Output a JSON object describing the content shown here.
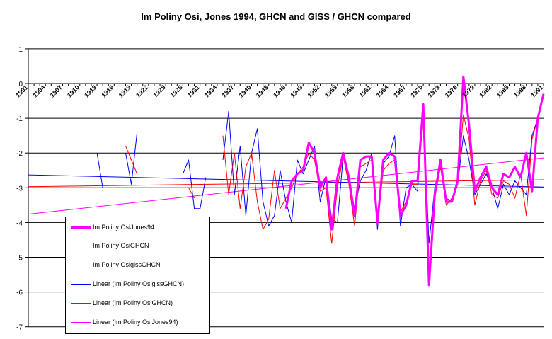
{
  "chart_data": {
    "type": "line",
    "title": "Im Poliny Osi, Jones 1994, GHCN and GISS / GHCN compared",
    "xlabel": "",
    "ylabel": "",
    "ylim": [
      -7,
      1
    ],
    "yticks": [
      1,
      0,
      -1,
      -2,
      -3,
      -4,
      -5,
      -6,
      -7
    ],
    "xlim": [
      1901,
      1991
    ],
    "xtick_labels": [
      "1901",
      "1904",
      "1907",
      "1910",
      "1913",
      "1916",
      "1919",
      "1922",
      "1925",
      "1928",
      "1931",
      "1934",
      "1937",
      "1940",
      "1943",
      "1946",
      "1949",
      "1952",
      "1955",
      "1958",
      "1961",
      "1964",
      "1967",
      "1970",
      "1973",
      "1976",
      "1979",
      "1982",
      "1985",
      "1988",
      "1991"
    ],
    "grid": "horizontal",
    "legend_position": "bottom-left",
    "series": [
      {
        "name": "Im Poliny OsiJones94",
        "color": "#ff00ff",
        "style": "thick",
        "points": [
          [
            1946,
            -3.6
          ],
          [
            1947,
            -2.8
          ],
          [
            1948,
            -2.6
          ],
          [
            1949,
            -2.5
          ],
          [
            1950,
            -1.7
          ],
          [
            1951,
            -2.0
          ],
          [
            1952,
            -3.0
          ],
          [
            1953,
            -2.7
          ],
          [
            1954,
            -4.2
          ],
          [
            1955,
            -2.7
          ],
          [
            1956,
            -2.0
          ],
          [
            1957,
            -2.7
          ],
          [
            1958,
            -3.8
          ],
          [
            1959,
            -2.2
          ],
          [
            1960,
            -2.1
          ],
          [
            1961,
            -2.1
          ],
          [
            1962,
            -4.0
          ],
          [
            1963,
            -2.2
          ],
          [
            1964,
            -2.0
          ],
          [
            1965,
            -2.1
          ],
          [
            1966,
            -3.8
          ],
          [
            1967,
            -3.5
          ],
          [
            1968,
            -2.8
          ],
          [
            1969,
            -2.8
          ],
          [
            1970,
            -0.6
          ],
          [
            1971,
            -5.8
          ],
          [
            1972,
            -3.2
          ],
          [
            1973,
            -2.2
          ],
          [
            1974,
            -3.4
          ],
          [
            1975,
            -3.4
          ],
          [
            1976,
            -2.8
          ],
          [
            1977,
            0.2
          ],
          [
            1978,
            -1.2
          ],
          [
            1979,
            -3.1
          ],
          [
            1980,
            -2.7
          ],
          [
            1981,
            -2.4
          ],
          [
            1982,
            -3.0
          ],
          [
            1983,
            -3.2
          ],
          [
            1984,
            -2.6
          ],
          [
            1985,
            -2.7
          ],
          [
            1986,
            -2.4
          ],
          [
            1987,
            -2.7
          ],
          [
            1988,
            -2.0
          ],
          [
            1989,
            -3.1
          ],
          [
            1990,
            -1.0
          ],
          [
            1991,
            -0.3
          ]
        ]
      },
      {
        "name": "Im Poliny OsiGHCN",
        "color": "#ff0000",
        "style": "thin",
        "points": [
          [
            1918,
            -1.8
          ],
          [
            1919,
            -2.2
          ],
          [
            1920,
            -2.6
          ],
          null,
          [
            1929,
            -3.0
          ],
          [
            1930,
            -3.3
          ],
          null,
          [
            1935,
            -1.5
          ],
          [
            1936,
            -3.2
          ],
          [
            1937,
            -2.0
          ],
          [
            1938,
            -3.6
          ],
          [
            1939,
            -2.4
          ],
          [
            1940,
            -2.0
          ],
          [
            1941,
            -3.4
          ],
          [
            1942,
            -4.2
          ],
          [
            1943,
            -3.9
          ],
          [
            1944,
            -2.5
          ],
          [
            1945,
            -3.6
          ],
          [
            1946,
            -3.3
          ],
          [
            1947,
            -3.0
          ],
          [
            1948,
            -2.6
          ],
          [
            1949,
            -2.4
          ],
          [
            1950,
            -2.0
          ],
          [
            1951,
            -2.2
          ],
          [
            1952,
            -3.1
          ],
          [
            1953,
            -3.0
          ],
          [
            1954,
            -4.6
          ],
          [
            1955,
            -3.0
          ],
          [
            1956,
            -2.1
          ],
          [
            1957,
            -2.9
          ],
          [
            1958,
            -4.1
          ],
          [
            1959,
            -2.4
          ],
          [
            1960,
            -2.3
          ],
          [
            1961,
            -2.2
          ],
          [
            1962,
            -4.1
          ],
          [
            1963,
            -2.5
          ],
          [
            1964,
            -2.3
          ],
          [
            1965,
            -2.2
          ],
          [
            1966,
            -3.7
          ],
          [
            1967,
            -3.4
          ],
          [
            1968,
            -2.9
          ],
          [
            1969,
            -2.9
          ],
          [
            1970,
            -1.0
          ],
          [
            1971,
            -5.6
          ],
          [
            1972,
            -3.3
          ],
          [
            1973,
            -2.4
          ],
          [
            1974,
            -3.5
          ],
          [
            1975,
            -3.3
          ],
          [
            1976,
            -2.9
          ],
          [
            1977,
            -0.9
          ],
          [
            1978,
            -1.6
          ],
          [
            1979,
            -3.5
          ],
          [
            1980,
            -2.8
          ],
          [
            1981,
            -2.5
          ],
          [
            1982,
            -3.2
          ],
          [
            1983,
            -3.3
          ],
          [
            1984,
            -2.8
          ],
          [
            1985,
            -2.9
          ],
          [
            1986,
            -3.3
          ],
          [
            1987,
            -2.6
          ],
          [
            1988,
            -3.8
          ],
          [
            1989,
            -1.6
          ],
          [
            1990,
            -1.0
          ]
        ]
      },
      {
        "name": "Im Poliny OsigissGHCN",
        "color": "#0000ff",
        "style": "thin",
        "points": [
          [
            1913,
            -2.0
          ],
          [
            1914,
            -3.0
          ],
          null,
          [
            1918,
            -2.0
          ],
          [
            1919,
            -2.9
          ],
          [
            1920,
            -1.4
          ],
          null,
          [
            1928,
            -2.6
          ],
          [
            1929,
            -2.2
          ],
          [
            1930,
            -3.6
          ],
          [
            1931,
            -3.6
          ],
          [
            1932,
            -2.7
          ],
          null,
          [
            1935,
            -2.2
          ],
          [
            1936,
            -0.8
          ],
          [
            1937,
            -3.2
          ],
          [
            1938,
            -1.8
          ],
          [
            1939,
            -3.8
          ],
          [
            1940,
            -2.0
          ],
          [
            1941,
            -1.3
          ],
          [
            1942,
            -3.4
          ],
          [
            1943,
            -4.1
          ],
          [
            1944,
            -3.8
          ],
          [
            1945,
            -2.5
          ],
          [
            1946,
            -3.4
          ],
          [
            1947,
            -4.0
          ],
          [
            1948,
            -2.2
          ],
          [
            1949,
            -2.6
          ],
          [
            1950,
            -2.2
          ],
          [
            1951,
            -1.8
          ],
          [
            1952,
            -3.4
          ],
          [
            1953,
            -2.7
          ],
          [
            1954,
            -3.9
          ],
          [
            1955,
            -4.0
          ],
          [
            1956,
            -2.1
          ],
          [
            1957,
            -2.8
          ],
          [
            1958,
            -3.6
          ],
          [
            1959,
            -2.8
          ],
          [
            1960,
            -2.5
          ],
          [
            1961,
            -2.0
          ],
          [
            1962,
            -4.2
          ],
          [
            1963,
            -2.3
          ],
          [
            1964,
            -2.1
          ],
          [
            1965,
            -1.5
          ],
          [
            1966,
            -4.1
          ],
          [
            1967,
            -3.0
          ],
          [
            1968,
            -2.9
          ],
          [
            1969,
            -3.1
          ],
          [
            1970,
            -0.8
          ],
          [
            1971,
            -4.6
          ],
          [
            1972,
            -3.0
          ],
          [
            1973,
            -2.3
          ],
          [
            1974,
            -3.3
          ],
          [
            1975,
            -3.4
          ],
          [
            1976,
            -2.9
          ],
          [
            1977,
            -1.5
          ],
          [
            1978,
            -2.2
          ],
          [
            1979,
            -3.2
          ],
          [
            1980,
            -2.9
          ],
          [
            1981,
            -2.6
          ],
          [
            1982,
            -3.0
          ],
          [
            1983,
            -3.6
          ],
          [
            1984,
            -2.9
          ],
          [
            1985,
            -3.2
          ],
          [
            1986,
            -2.8
          ],
          [
            1987,
            -3.0
          ],
          [
            1988,
            -3.2
          ],
          [
            1989,
            -1.5
          ],
          [
            1990,
            -1.0
          ]
        ]
      },
      {
        "name": "Linear (Im Poliny OsigissGHCN)",
        "color": "#0000ff",
        "style": "thin",
        "points": [
          [
            1901,
            -2.63
          ],
          [
            1991,
            -2.98
          ]
        ]
      },
      {
        "name": "Linear (Im Poliny OsiGHCN)",
        "color": "#ff0000",
        "style": "thin",
        "points": [
          [
            1901,
            -2.97
          ],
          [
            1991,
            -2.77
          ]
        ]
      },
      {
        "name": "Linear (Im Poliny OsiJones94)",
        "color": "#ff00ff",
        "style": "thin",
        "points": [
          [
            1901,
            -3.76
          ],
          [
            1991,
            -2.14
          ]
        ]
      }
    ],
    "legend": [
      {
        "label": "Im Poliny OsiJones94",
        "color": "#ff00ff",
        "style": "thick"
      },
      {
        "label": "Im Poliny OsiGHCN",
        "color": "#ff0000",
        "style": "thin"
      },
      {
        "label": "Im Poliny OsigissGHCN",
        "color": "#0000ff",
        "style": "thin"
      },
      {
        "label": "Linear (Im Poliny OsigissGHCN)",
        "color": "#0000ff",
        "style": "thin"
      },
      {
        "label": "Linear (Im Poliny OsiGHCN)",
        "color": "#ff0000",
        "style": "thin"
      },
      {
        "label": "Linear (Im Poliny OsiJones94)",
        "color": "#ff00ff",
        "style": "thin"
      }
    ]
  }
}
